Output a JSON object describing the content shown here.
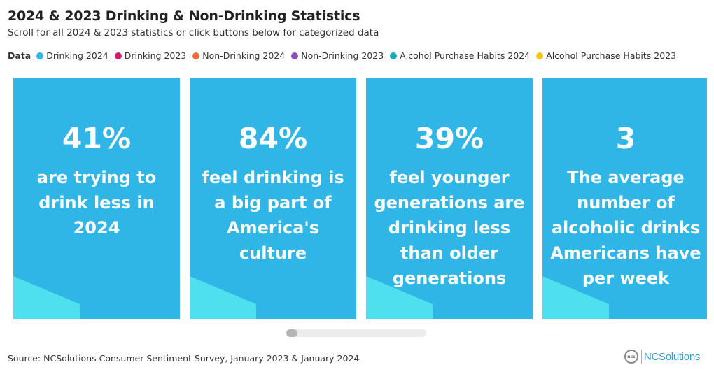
{
  "header": {
    "title": "2024 & 2023 Drinking & Non-Drinking Statistics",
    "subtitle": "Scroll for all 2024 & 2023 statistics or click buttons below for categorized data"
  },
  "legend": {
    "label": "Data",
    "items": [
      {
        "label": "Drinking 2024",
        "color": "#2fb5e6"
      },
      {
        "label": "Drinking 2023",
        "color": "#d81b73"
      },
      {
        "label": "Non-Drinking 2024",
        "color": "#ef6a3a"
      },
      {
        "label": "Non-Drinking 2023",
        "color": "#8a4fb3"
      },
      {
        "label": "Alcohol Purchase Habits 2024",
        "color": "#1aa9b8"
      },
      {
        "label": "Alcohol Purchase Habits 2023",
        "color": "#f2c417"
      }
    ]
  },
  "cards": [
    {
      "number": "41%",
      "text": "are trying to drink less in 2024"
    },
    {
      "number": "84%",
      "text": "feel drinking is a big part of America's culture"
    },
    {
      "number": "39%",
      "text": "feel younger generations are drinking less than older generations"
    },
    {
      "number": "3",
      "text": "The average number of alcoholic drinks Americans have per week"
    }
  ],
  "colors": {
    "card_bg": "#2fb5e6",
    "card_accent": "#4fe0f0"
  },
  "scroll": {
    "position_fraction": 0.0
  },
  "footer": {
    "source": "Source: NCSolutions Consumer Sentiment Survey, January 2023 & January 2024",
    "logo_mark": "ncs",
    "logo_text": "NCSolutions"
  }
}
